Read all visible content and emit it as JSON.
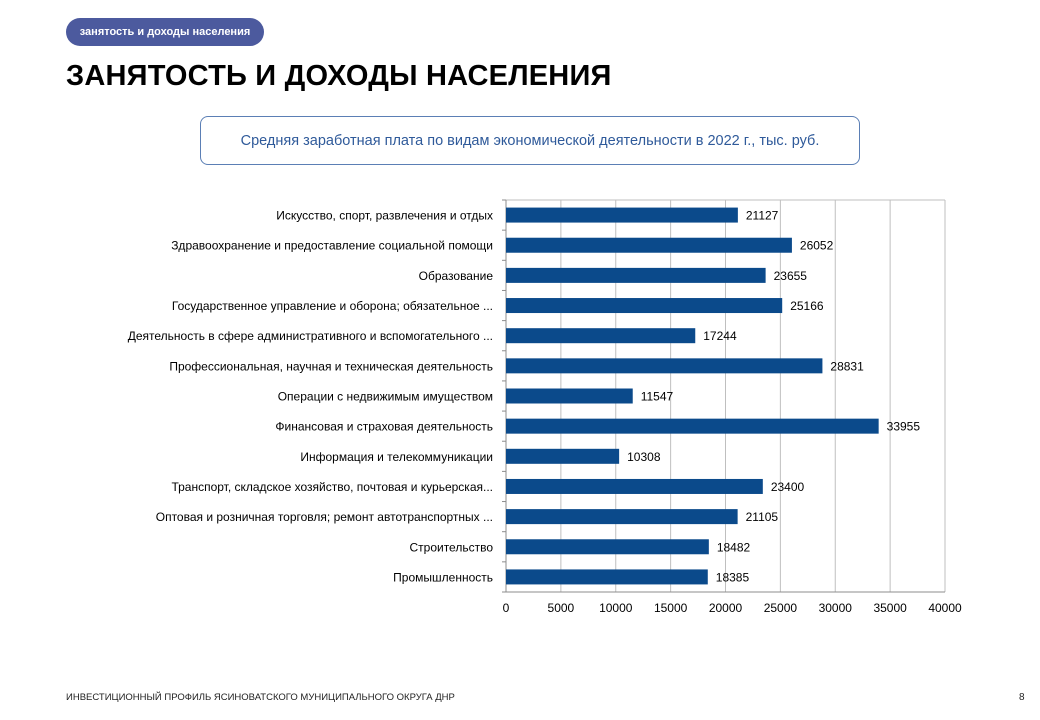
{
  "header": {
    "section_pill": "занятость и доходы населения",
    "title": "ЗАНЯТОСТЬ И ДОХОДЫ НАСЕЛЕНИЯ"
  },
  "chart_data": {
    "type": "bar",
    "orientation": "horizontal",
    "title": "Средняя заработная плата по видам экономической деятельности в 2022 г., тыс. руб.",
    "categories": [
      "Искусство, спорт, развлечения и отдых",
      "Здравоохранение и предоставление социальной помощи",
      "Образование",
      "Государственное управление и оборона; обязательное ...",
      "Деятельность в сфере административного и вспомогательного ...",
      "Профессиональная, научная и техническая деятельность",
      "Операции с недвижимым имуществом",
      "Финансовая и страховая деятельность",
      "Информация и телекоммуникации",
      "Транспорт, складское хозяйство, почтовая и курьерская...",
      "Оптовая и розничная торговля; ремонт автотранспортных ...",
      "Строительство",
      "Промышленность"
    ],
    "values": [
      21127,
      26052,
      23655,
      25166,
      17244,
      28831,
      11547,
      33955,
      10308,
      23400,
      21105,
      18482,
      18385
    ],
    "xlim": [
      0,
      40000
    ],
    "xticks": [
      "0",
      "5000",
      "10000",
      "15000",
      "20000",
      "25000",
      "30000",
      "35000",
      "40000"
    ],
    "grid": true,
    "bar_color": "#0b4a8b",
    "legend": "none"
  },
  "footer": {
    "text": "ИНВЕСТИЦИОННЫЙ ПРОФИЛЬ ЯСИНОВАТСКОГО МУНИЦИПАЛЬНОГО ОКРУГА ДНР",
    "page": "8"
  }
}
